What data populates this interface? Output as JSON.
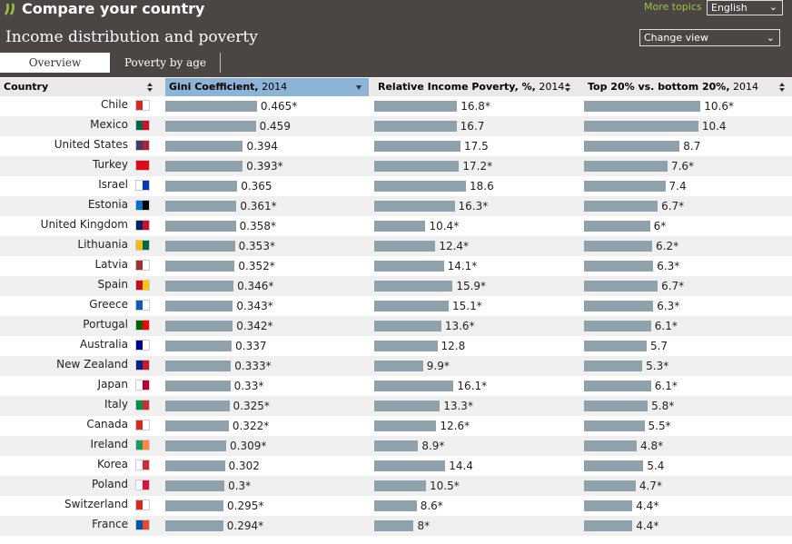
{
  "header": {
    "brand": "Compare your country",
    "more_topics": "More topics",
    "language": "English",
    "title": "Income distribution and poverty",
    "change_view": "Change view"
  },
  "tabs": [
    "Overview",
    "Poverty by age"
  ],
  "table": {
    "columns": [
      {
        "name": "Country"
      },
      {
        "name": "Gini Coefficient,",
        "year": "2014"
      },
      {
        "name": "Relative Income Poverty, %,",
        "year": "2014"
      },
      {
        "name": "Top 20% vs. bottom 20%,",
        "year": "2014"
      }
    ],
    "rows": [
      {
        "country": "Chile",
        "gini": {
          "value": 0.465,
          "label": "0.465*"
        },
        "poverty": {
          "value": 16.8,
          "label": "16.8*"
        },
        "ratio": {
          "value": 10.6,
          "label": "10.6*"
        }
      },
      {
        "country": "Mexico",
        "gini": 0.459,
        "poverty": 16.7,
        "ratio": 10.4
      },
      {
        "country": "United States",
        "gini": 0.394,
        "poverty": 17.5,
        "ratio": 8.7
      },
      {
        "country": "Turkey",
        "gini": {
          "value": 0.393,
          "label": "0.393*"
        },
        "poverty": {
          "value": 17.2,
          "label": "17.2*"
        },
        "ratio": {
          "value": 7.6,
          "label": "7.6*"
        }
      },
      {
        "country": "Israel",
        "gini": 0.365,
        "poverty": 18.6,
        "ratio": 7.4
      },
      {
        "country": "Estonia",
        "gini": {
          "value": 0.361,
          "label": "0.361*"
        },
        "poverty": {
          "value": 16.3,
          "label": "16.3*"
        },
        "ratio": {
          "value": 6.7,
          "label": "6.7*"
        }
      },
      {
        "country": "United Kingdom",
        "gini": {
          "value": 0.358,
          "label": "0.358*"
        },
        "poverty": {
          "value": 10.4,
          "label": "10.4*"
        },
        "ratio": {
          "value": 6,
          "label": "6*"
        }
      },
      {
        "country": "Lithuania",
        "gini": {
          "value": 0.353,
          "label": "0.353*"
        },
        "poverty": {
          "value": 12.4,
          "label": "12.4*"
        },
        "ratio": {
          "value": 6.2,
          "label": "6.2*"
        }
      },
      {
        "country": "Latvia",
        "gini": {
          "value": 0.352,
          "label": "0.352*"
        },
        "poverty": {
          "value": 14.1,
          "label": "14.1*"
        },
        "ratio": {
          "value": 6.3,
          "label": "6.3*"
        }
      },
      {
        "country": "Spain",
        "gini": {
          "value": 0.346,
          "label": "0.346*"
        },
        "poverty": {
          "value": 15.9,
          "label": "15.9*"
        },
        "ratio": {
          "value": 6.7,
          "label": "6.7*"
        }
      },
      {
        "country": "Greece",
        "gini": {
          "value": 0.343,
          "label": "0.343*"
        },
        "poverty": {
          "value": 15.1,
          "label": "15.1*"
        },
        "ratio": {
          "value": 6.3,
          "label": "6.3*"
        }
      },
      {
        "country": "Portugal",
        "gini": {
          "value": 0.342,
          "label": "0.342*"
        },
        "poverty": {
          "value": 13.6,
          "label": "13.6*"
        },
        "ratio": {
          "value": 6.1,
          "label": "6.1*"
        }
      },
      {
        "country": "Australia",
        "gini": 0.337,
        "poverty": 12.8,
        "ratio": 5.7
      },
      {
        "country": "New Zealand",
        "gini": {
          "value": 0.333,
          "label": "0.333*"
        },
        "poverty": {
          "value": 9.9,
          "label": "9.9*"
        },
        "ratio": {
          "value": 5.3,
          "label": "5.3*"
        }
      },
      {
        "country": "Japan",
        "gini": {
          "value": 0.33,
          "label": "0.33*"
        },
        "poverty": {
          "value": 16.1,
          "label": "16.1*"
        },
        "ratio": {
          "value": 6.1,
          "label": "6.1*"
        }
      },
      {
        "country": "Italy",
        "gini": {
          "value": 0.325,
          "label": "0.325*"
        },
        "poverty": {
          "value": 13.3,
          "label": "13.3*"
        },
        "ratio": {
          "value": 5.8,
          "label": "5.8*"
        }
      },
      {
        "country": "Canada",
        "gini": {
          "value": 0.322,
          "label": "0.322*"
        },
        "poverty": {
          "value": 12.6,
          "label": "12.6*"
        },
        "ratio": {
          "value": 5.5,
          "label": "5.5*"
        }
      },
      {
        "country": "Ireland",
        "gini": {
          "value": 0.309,
          "label": "0.309*"
        },
        "poverty": {
          "value": 8.9,
          "label": "8.9*"
        },
        "ratio": {
          "value": 4.8,
          "label": "4.8*"
        }
      },
      {
        "country": "Korea",
        "gini": 0.302,
        "poverty": 14.4,
        "ratio": 5.4
      },
      {
        "country": "Poland",
        "gini": {
          "value": 0.3,
          "label": "0.3*"
        },
        "poverty": {
          "value": 10.5,
          "label": "10.5*"
        },
        "ratio": {
          "value": 4.7,
          "label": "4.7*"
        }
      },
      {
        "country": "Switzerland",
        "gini": {
          "value": 0.295,
          "label": "0.295*"
        },
        "poverty": {
          "value": 8.6,
          "label": "8.6*"
        },
        "ratio": {
          "value": 4.4,
          "label": "4.4*"
        }
      },
      {
        "country": "France",
        "gini": {
          "value": 0.294,
          "label": "0.294*"
        },
        "poverty": {
          "value": 8,
          "label": "8*"
        },
        "ratio": {
          "value": 4.4,
          "label": "4.4*"
        }
      }
    ]
  }
}
